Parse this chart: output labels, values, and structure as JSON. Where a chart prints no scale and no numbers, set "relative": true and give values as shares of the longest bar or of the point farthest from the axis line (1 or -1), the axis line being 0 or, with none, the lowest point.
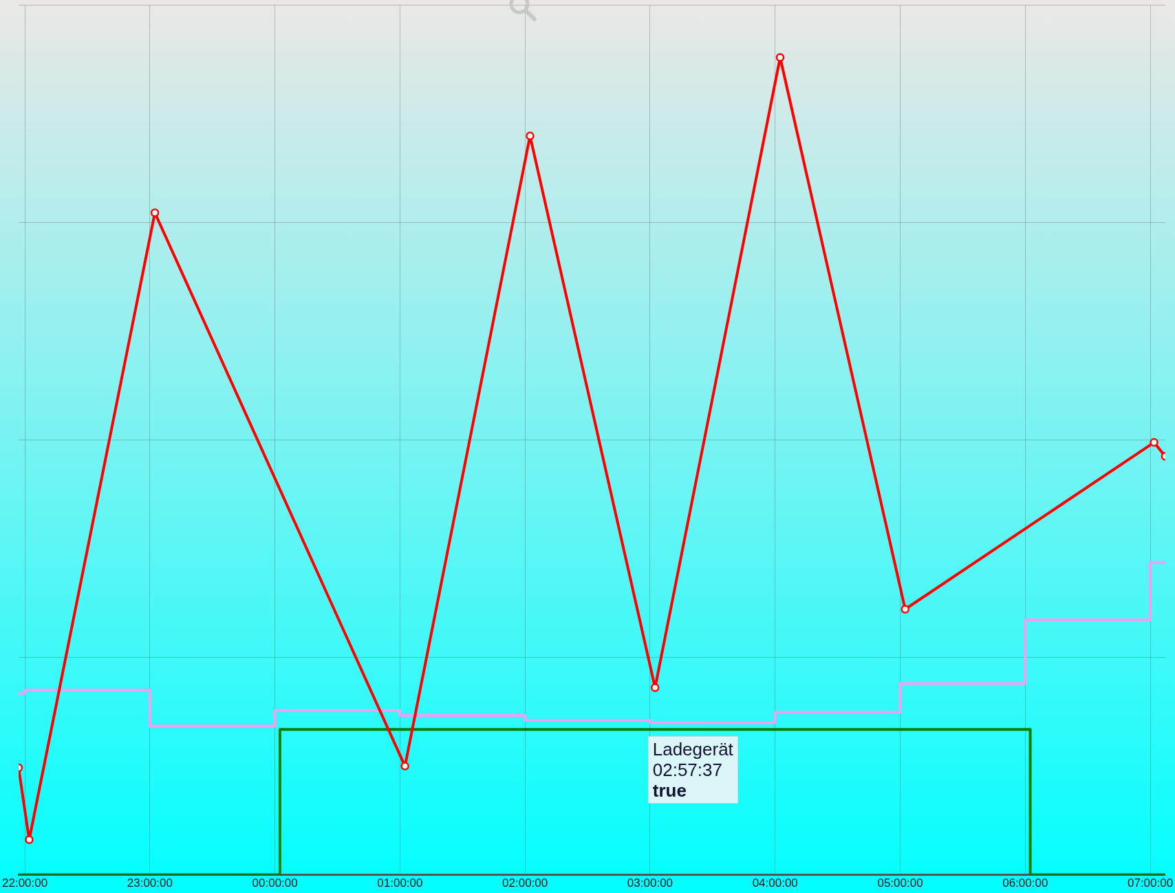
{
  "chart_data": {
    "type": "line",
    "relative": true,
    "xlim": [
      "--01-01T21:57:00",
      "--01-02T07:07:12"
    ],
    "xticks": [
      {
        "value": "--01-01T22:00:00",
        "label": "22:00:00"
      },
      {
        "value": "--01-01T23:00:00",
        "label": "23:00:00"
      },
      {
        "value": "--01-02T00:00:00",
        "label": "00:00:00"
      },
      {
        "value": "--01-02T01:00:00",
        "label": "01:00:00"
      },
      {
        "value": "--01-02T02:00:00",
        "label": "02:00:00"
      },
      {
        "value": "--01-02T03:00:00",
        "label": "03:00:00"
      },
      {
        "value": "--01-02T04:00:00",
        "label": "04:00:00"
      },
      {
        "value": "--01-02T05:00:00",
        "label": "05:00:00"
      },
      {
        "value": "--01-02T06:00:00",
        "label": "06:00:00"
      },
      {
        "value": "--01-02T07:00:00",
        "label": "07:00:00"
      }
    ],
    "grid": true,
    "legend": false,
    "series": [
      {
        "type": "line",
        "color": "#ff0000",
        "marker": "circle",
        "x": [
          "--01-01T21:57:00",
          "--01-01T22:02:06",
          "--01-01T23:02:24",
          "--01-02T01:02:24",
          "--01-02T02:02:24",
          "--01-02T03:02:24",
          "--01-02T04:02:24",
          "--01-02T05:02:24",
          "--01-02T07:01:48",
          "--01-02T07:07:12"
        ],
        "values": [
          0.131,
          0.043,
          0.81,
          0.133,
          0.904,
          0.229,
          1,
          0.325,
          0.529,
          0.512
        ]
      },
      {
        "type": "step",
        "color": "#f0a0f0",
        "marker": "none",
        "x": [
          "--01-01T21:57:00",
          "--01-01T22:00:00",
          "--01-01T23:00:00",
          "--01-02T00:00:00",
          "--01-02T01:00:00",
          "--01-02T02:00:00",
          "--01-02T03:00:00",
          "--01-02T04:00:00",
          "--01-02T05:00:00",
          "--01-02T06:00:00",
          "--01-02T07:00:00",
          "--01-02T07:07:12"
        ],
        "values": [
          0.222,
          0.226,
          0.182,
          0.201,
          0.195,
          0.189,
          0.186,
          0.199,
          0.234,
          0.312,
          0.382,
          0.382
        ]
      },
      {
        "type": "step",
        "color": "#008000",
        "marker": "none",
        "x": [
          "--01-01T21:57:00",
          "--01-02T00:02:24",
          "--01-02T06:02:24",
          "--01-02T07:07:12"
        ],
        "values": [
          0,
          0.178,
          0,
          0
        ]
      }
    ],
    "annotations": [
      {
        "text": "Ladegerät\n02:57:37\ntrue",
        "x": "--01-02T02:57:37",
        "y": 0.178
      }
    ]
  }
}
